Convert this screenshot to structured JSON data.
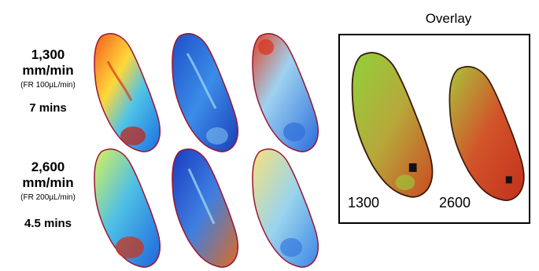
{
  "rows": [
    {
      "rate_value": "1,300",
      "rate_unit": "mm/min",
      "flow_rate": "(FR 100µL/min)",
      "time": "7 mins"
    },
    {
      "rate_value": "2,600",
      "rate_unit": "mm/min",
      "flow_rate": "(FR 200µL/min)",
      "time": "4.5 mins"
    }
  ],
  "overlay": {
    "title": "Overlay",
    "labels": [
      "1300",
      "2600"
    ]
  },
  "colors": {
    "outline": "#9b1530",
    "jet_high": "#c0271c",
    "jet_mid": "#f2e24a",
    "jet_low": "#1e5fd8",
    "overlay_green": "#7cc63a",
    "overlay_red": "#c8421f"
  }
}
